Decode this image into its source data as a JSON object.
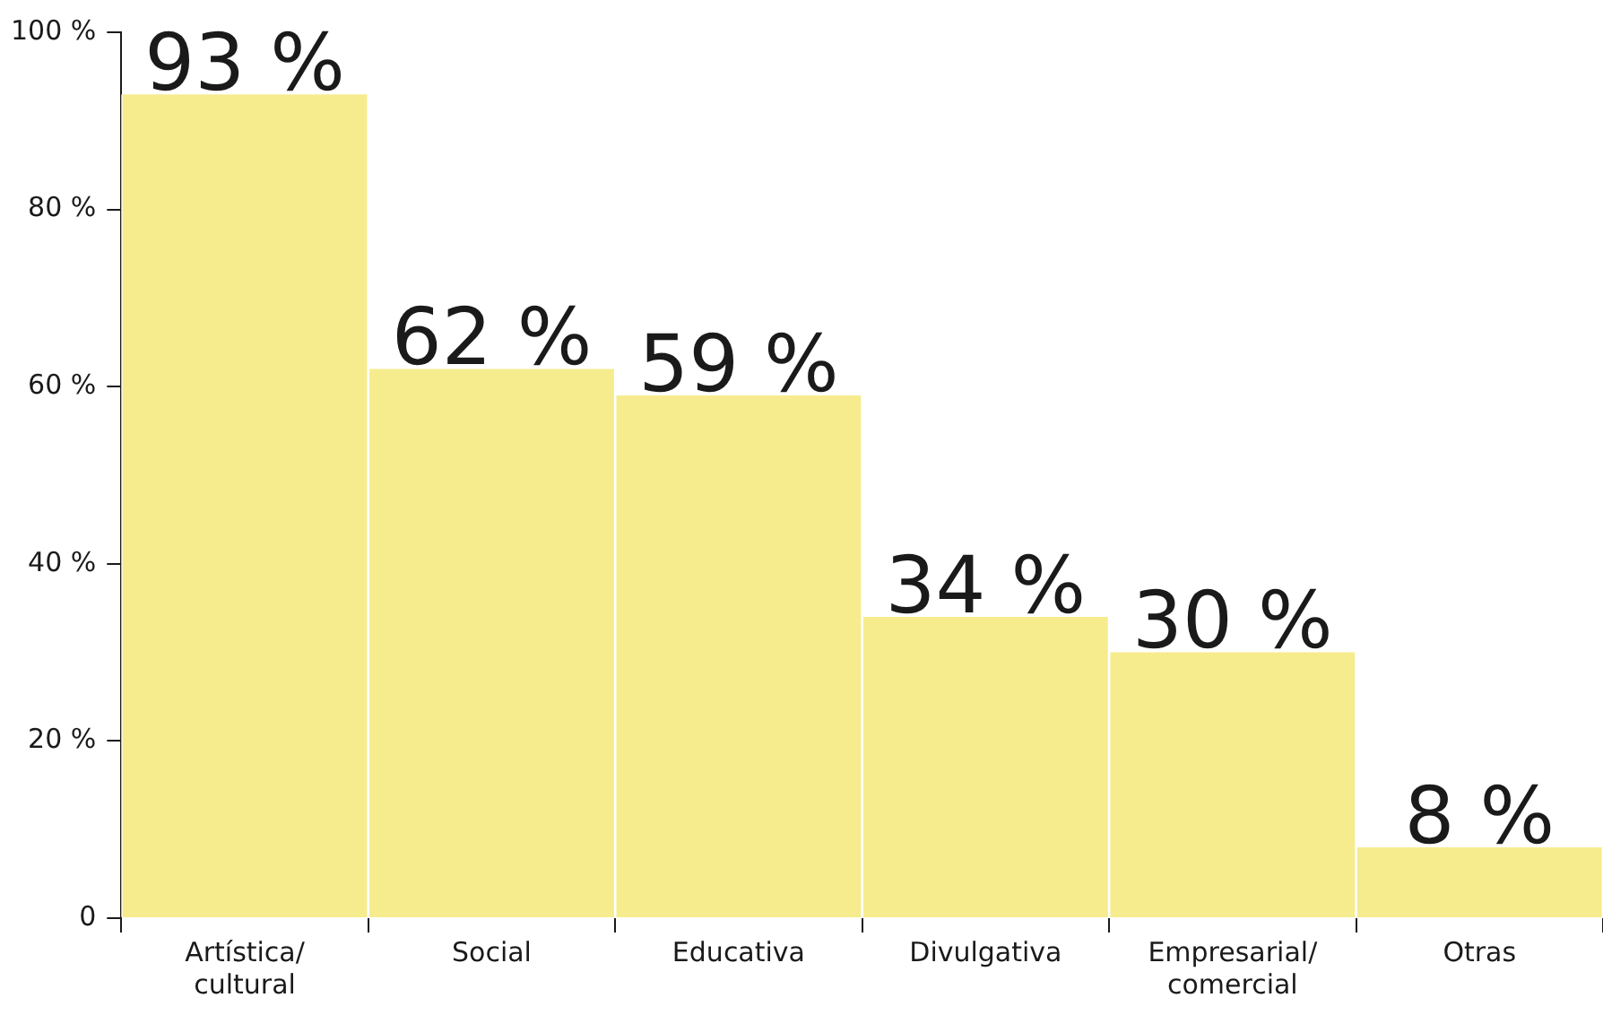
{
  "chart_data": {
    "type": "bar",
    "categories": [
      "Artística/\ncultural",
      "Social",
      "Educativa",
      "Divulgativa",
      "Empresarial/\ncomercial",
      "Otras"
    ],
    "values": [
      93,
      62,
      59,
      34,
      30,
      8
    ],
    "value_labels": [
      "93 %",
      "62 %",
      "59 %",
      "34 %",
      "30 %",
      "8 %"
    ],
    "color": "#f6ec8e",
    "ylim": [
      0,
      100
    ],
    "yticks": [
      {
        "value": 0,
        "label": "0"
      },
      {
        "value": 20,
        "label": "20 %"
      },
      {
        "value": 40,
        "label": "40 %"
      },
      {
        "value": 60,
        "label": "60 %"
      },
      {
        "value": 80,
        "label": "80 %"
      },
      {
        "value": 100,
        "label": "100 %"
      }
    ],
    "grid": false,
    "legend": false
  }
}
